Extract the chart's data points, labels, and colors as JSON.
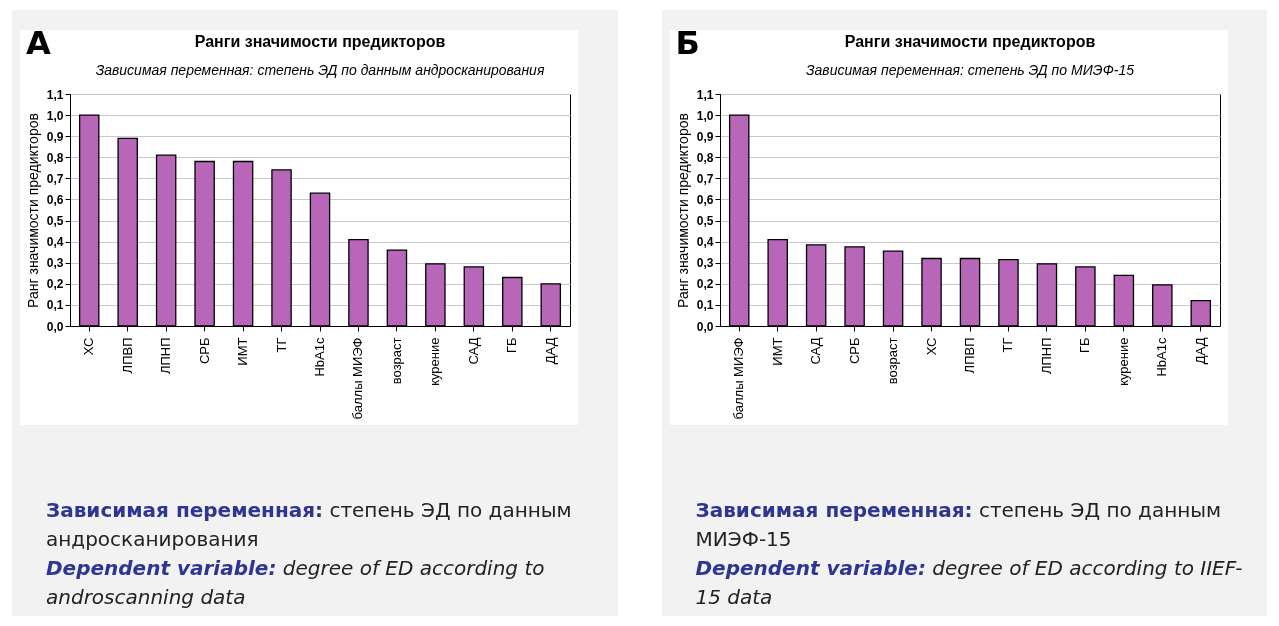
{
  "chart_data": [
    {
      "type": "bar",
      "title": "Ранги значимости предикторов",
      "subtitle": "Зависимая переменная: степень ЭД по данным андросканирования",
      "ylabel": "Ранг значимости предикторов",
      "categories": [
        "ХС",
        "ЛПВП",
        "ЛПНП",
        "СРБ",
        "ИМТ",
        "ТГ",
        "HbA1c",
        "баллы МИЭФ",
        "возраст",
        "курение",
        "САД",
        "ГБ",
        "ДАД"
      ],
      "values": [
        1.0,
        0.89,
        0.81,
        0.78,
        0.78,
        0.74,
        0.63,
        0.41,
        0.36,
        0.295,
        0.28,
        0.23,
        0.2
      ],
      "color": "#b866b8",
      "ylim": [
        0,
        1.1
      ],
      "yticks": [
        {
          "value": 0,
          "label": "0,0"
        },
        {
          "value": 0.1,
          "label": "0,1"
        },
        {
          "value": 0.2,
          "label": "0,2"
        },
        {
          "value": 0.3,
          "label": "0,3"
        },
        {
          "value": 0.4,
          "label": "0,4"
        },
        {
          "value": 0.5,
          "label": "0,5"
        },
        {
          "value": 0.6,
          "label": "0,6"
        },
        {
          "value": 0.7,
          "label": "0,7"
        },
        {
          "value": 0.8,
          "label": "0,8"
        },
        {
          "value": 0.9,
          "label": "0,9"
        },
        {
          "value": 1.0,
          "label": "1,0"
        },
        {
          "value": 1.1,
          "label": "1,1"
        }
      ],
      "grid": "y",
      "annotations": [
        "А",
        "Зависимая переменная: степень ЭД по данным андросканирования",
        "Dependent variable: degree of ED according to androscanning data"
      ]
    },
    {
      "type": "bar",
      "title": "Ранги значимости предикторов",
      "subtitle": "Зависимая переменная: степень ЭД по МИЭФ-15",
      "ylabel": "Ранг значимости предикторов",
      "categories": [
        "баллы МИЭФ",
        "ИМТ",
        "САД",
        "СРБ",
        "возраст",
        "ХС",
        "ЛПВП",
        "ТГ",
        "ЛПНП",
        "ГБ",
        "курение",
        "HbA1c",
        "ДАД"
      ],
      "values": [
        1.0,
        0.41,
        0.385,
        0.375,
        0.355,
        0.32,
        0.32,
        0.315,
        0.295,
        0.28,
        0.24,
        0.195,
        0.12
      ],
      "color": "#b866b8",
      "ylim": [
        0,
        1.1
      ],
      "yticks": [
        {
          "value": 0,
          "label": "0,0"
        },
        {
          "value": 0.1,
          "label": "0,1"
        },
        {
          "value": 0.2,
          "label": "0,2"
        },
        {
          "value": 0.3,
          "label": "0,3"
        },
        {
          "value": 0.4,
          "label": "0,4"
        },
        {
          "value": 0.5,
          "label": "0,5"
        },
        {
          "value": 0.6,
          "label": "0,6"
        },
        {
          "value": 0.7,
          "label": "0,7"
        },
        {
          "value": 0.8,
          "label": "0,8"
        },
        {
          "value": 0.9,
          "label": "0,9"
        },
        {
          "value": 1.0,
          "label": "1,0"
        },
        {
          "value": 1.1,
          "label": "1,1"
        }
      ],
      "grid": "y",
      "annotations": [
        "Б",
        "Зависимая переменная: степень ЭД по данным МИЭФ-15",
        "Dependent variable: degree of ED according to IIEF-15 data"
      ]
    }
  ]
}
